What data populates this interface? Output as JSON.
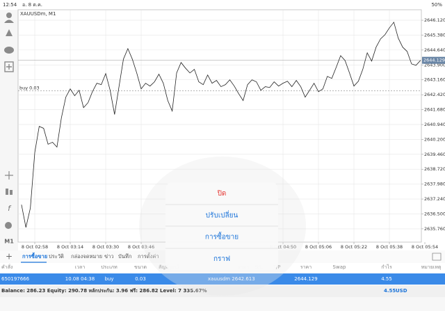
{
  "status_bar": {
    "time": "12:54",
    "date": "อ. 8 ต.ค.",
    "battery": "50%"
  },
  "chart_data": {
    "type": "line",
    "title": "XAUUSDm, M1",
    "color": "#222222",
    "grid": true,
    "categories": [
      null,
      null,
      null,
      "8 Oct 02:58",
      null,
      null,
      null,
      null,
      null,
      null,
      null,
      "8 Oct 03:14",
      null,
      null,
      null,
      null,
      null,
      null,
      null,
      "8 Oct 03:30",
      null,
      null,
      null,
      null,
      null,
      null,
      null,
      "8 Oct 03:46",
      null,
      null,
      null,
      null,
      null,
      null,
      null,
      null,
      null,
      null,
      null,
      null,
      null,
      null,
      null,
      null,
      null,
      null,
      null,
      null,
      null,
      null,
      null,
      null,
      null,
      null,
      null,
      null,
      null,
      null,
      null,
      "8 Oct 04:50",
      null,
      null,
      null,
      null,
      null,
      null,
      null,
      "8 Oct 05:06",
      null,
      null,
      null,
      null,
      null,
      null,
      null,
      "8 Oct 05:22",
      null,
      null,
      null,
      null,
      null,
      null,
      null,
      "8 Oct 05:38",
      null,
      null,
      null,
      null,
      null,
      null,
      null,
      "8 Oct 05:54"
    ],
    "values": [
      2636.96,
      2635.83,
      2636.79,
      2639.55,
      2640.85,
      2640.75,
      2639.96,
      2640.06,
      2639.82,
      2641.27,
      2642.3,
      2642.71,
      2642.37,
      2642.64,
      2641.78,
      2642.02,
      2642.57,
      2642.99,
      2642.92,
      2643.47,
      2642.64,
      2641.44,
      2642.82,
      2644.19,
      2644.71,
      2644.19,
      2643.5,
      2642.71,
      2642.99,
      2642.85,
      2643.06,
      2643.44,
      2642.99,
      2642.13,
      2641.61,
      2643.5,
      2644.02,
      2643.74,
      2643.5,
      2643.68,
      2643.06,
      2642.92,
      2643.4,
      2642.99,
      2643.13,
      2642.82,
      2642.92,
      2643.16,
      2642.85,
      2642.47,
      2642.13,
      2642.92,
      2643.16,
      2643.06,
      2642.64,
      2642.82,
      2642.78,
      2643.06,
      2642.85,
      2642.99,
      2643.09,
      2642.82,
      2643.13,
      2642.82,
      2642.3,
      2642.64,
      2642.99,
      2642.57,
      2642.71,
      2643.33,
      2643.23,
      2643.78,
      2644.36,
      2644.12,
      2643.5,
      2642.85,
      2643.09,
      2643.68,
      2644.5,
      2644.09,
      2644.78,
      2645.19,
      2645.4,
      2645.74,
      2646.02,
      2645.23,
      2644.78,
      2644.57,
      2643.95,
      2643.88,
      2644.12,
      null
    ],
    "ylim": [
      2635.1,
      2646.64
    ],
    "yticks": [
      {
        "value": 2646.12,
        "label": "2646.120"
      },
      {
        "value": 2645.38,
        "label": "2645.380"
      },
      {
        "value": 2644.64,
        "label": "2644.640"
      },
      {
        "value": 2643.9,
        "label": "2643.900"
      },
      {
        "value": 2643.16,
        "label": "2643.160"
      },
      {
        "value": 2642.42,
        "label": "2642.420"
      },
      {
        "value": 2641.68,
        "label": "2641.680"
      },
      {
        "value": 2640.94,
        "label": "2640.940"
      },
      {
        "value": 2640.2,
        "label": "2640.200"
      },
      {
        "value": 2639.46,
        "label": "2639.460"
      },
      {
        "value": 2638.72,
        "label": "2638.720"
      },
      {
        "value": 2637.98,
        "label": "2637.980"
      },
      {
        "value": 2637.24,
        "label": "2637.240"
      },
      {
        "value": 2636.5,
        "label": "2636.500"
      },
      {
        "value": 2635.76,
        "label": "2635.760"
      }
    ],
    "current_price": 2644.129,
    "order_line": {
      "label": "buy 0.03",
      "value": 2642.613
    }
  },
  "timeframe": "M1",
  "tabs": [
    "การซื้อขาย",
    "ประวัติ",
    "กล่องจดหมาย",
    "ข่าว",
    "บันทึก",
    "การตั้งค่า"
  ],
  "table": {
    "columns": [
      "คำสั่ง",
      "เวลา",
      "ประเภท",
      "ขนาด",
      "สัญลักษณ์",
      "ราคา",
      "S/L",
      "T/P",
      "ราคา",
      "Swap",
      "กำไร",
      "หมายเหตุ"
    ],
    "rows": [
      [
        "650197666",
        "10.08 04:38",
        "buy",
        "0.03",
        "xauusdm",
        "2642.613",
        null,
        null,
        "2644.129",
        null,
        "4.55",
        null
      ]
    ]
  },
  "summary": {
    "text": "Balance: 286.23 Equity: 290.78 หลักประกัน: 3.96 ฟรี: 286.82 Level: 7 335.67%",
    "profit": "4.55",
    "currency": "USD"
  },
  "menu": [
    "ปิด",
    "ปรับเปลี่ยน",
    "การซื้อขาย",
    "กราฟ"
  ]
}
